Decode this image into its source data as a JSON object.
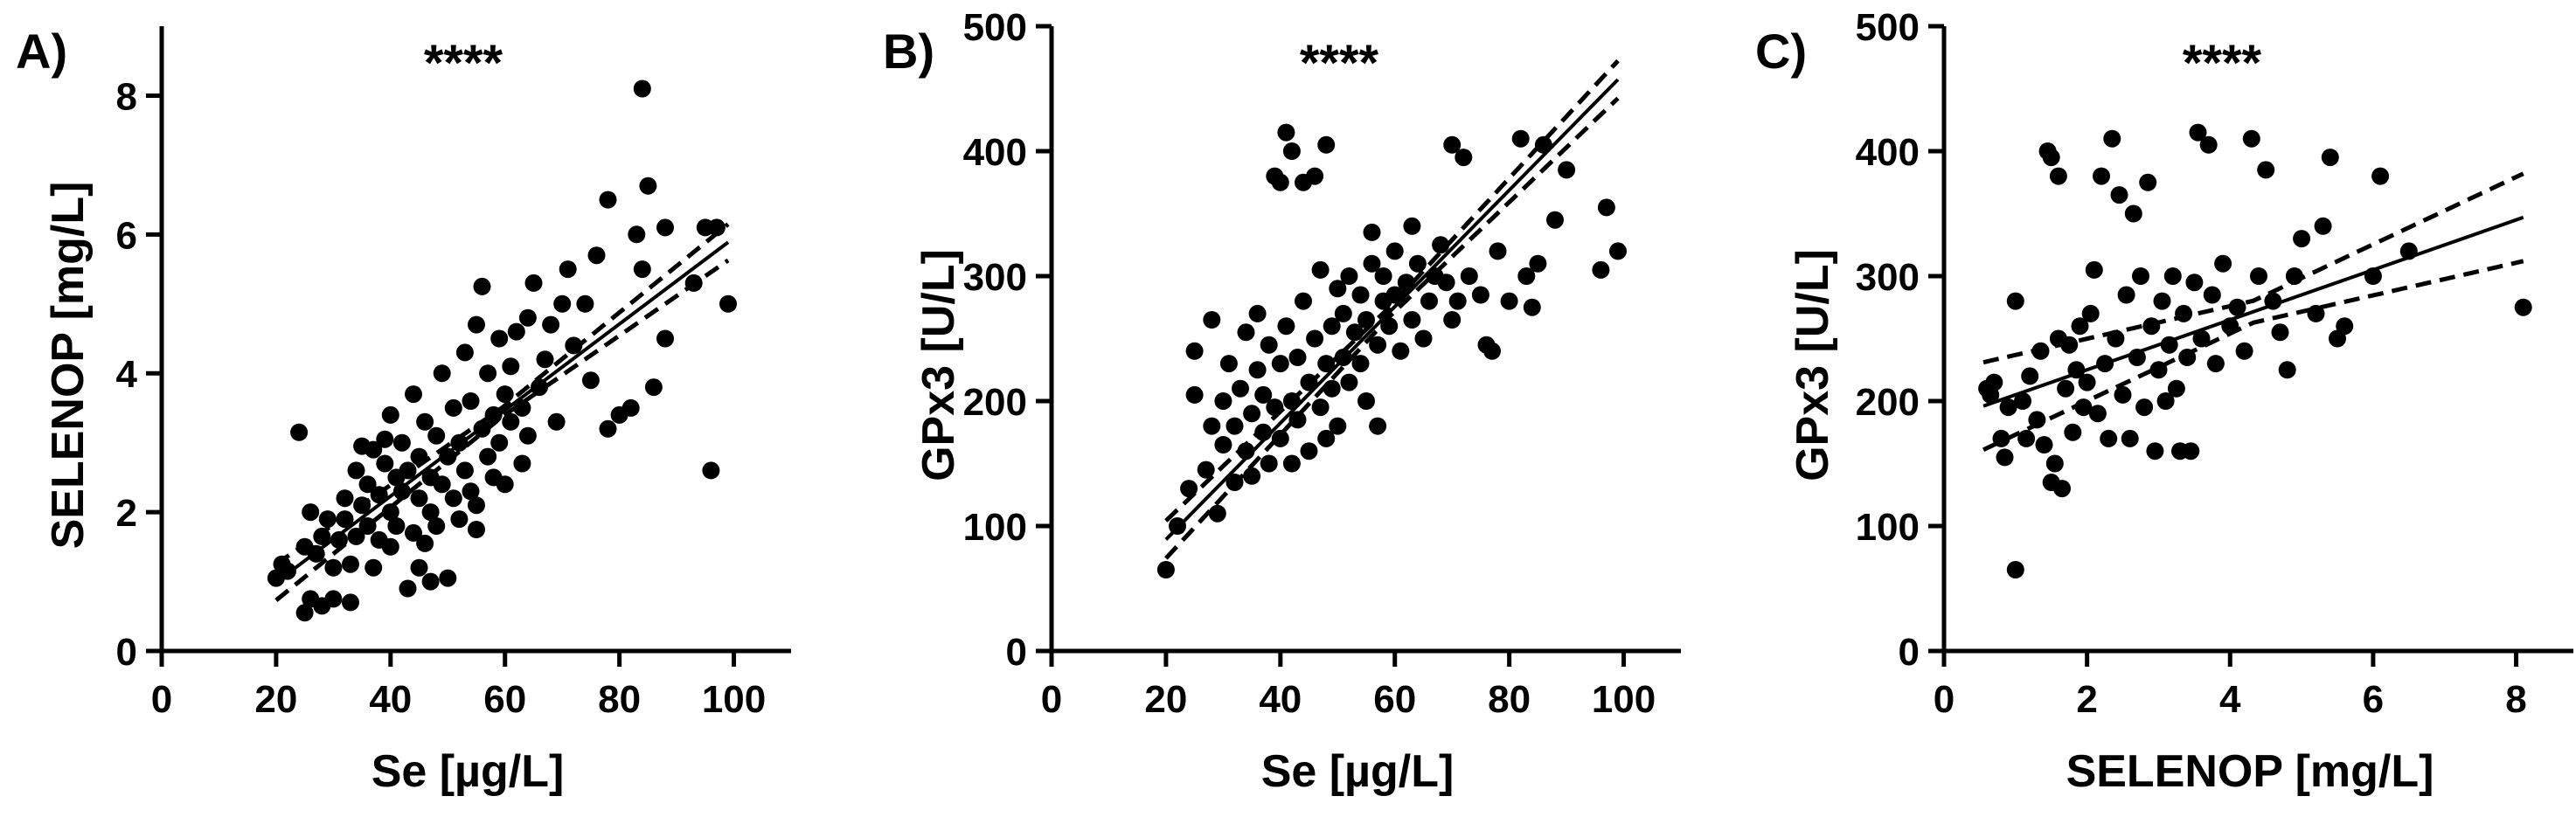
{
  "chart_data": [
    {
      "panel_label": "A)",
      "type": "scatter",
      "annotation": "****",
      "xlabel": "Se [µg/L]",
      "ylabel": "SELENOP [mg/L]",
      "xlim": [
        0,
        110
      ],
      "ylim": [
        0,
        9
      ],
      "xticks": [
        0,
        20,
        40,
        60,
        80,
        100
      ],
      "yticks": [
        0,
        2,
        4,
        6,
        8
      ],
      "regression": {
        "x_range": [
          20,
          99
        ],
        "slope": 0.062,
        "intercept": -0.25,
        "ci_halfwidth_end": 0.26
      },
      "points": [
        [
          20,
          1.05
        ],
        [
          21,
          1.25
        ],
        [
          22,
          1.15
        ],
        [
          24,
          3.15
        ],
        [
          25,
          1.5
        ],
        [
          25,
          0.55
        ],
        [
          26,
          0.75
        ],
        [
          26,
          2.0
        ],
        [
          27,
          1.4
        ],
        [
          28,
          0.65
        ],
        [
          28,
          1.65
        ],
        [
          29,
          1.9
        ],
        [
          30,
          1.2
        ],
        [
          30,
          0.75
        ],
        [
          31,
          1.6
        ],
        [
          32,
          2.2
        ],
        [
          32,
          1.9
        ],
        [
          33,
          1.25
        ],
        [
          33,
          0.7
        ],
        [
          34,
          2.6
        ],
        [
          34,
          1.65
        ],
        [
          35,
          2.1
        ],
        [
          35,
          2.95
        ],
        [
          36,
          1.8
        ],
        [
          36,
          2.4
        ],
        [
          37,
          1.2
        ],
        [
          37,
          2.9
        ],
        [
          38,
          2.25
        ],
        [
          38,
          1.6
        ],
        [
          39,
          2.7
        ],
        [
          39,
          3.05
        ],
        [
          40,
          2.0
        ],
        [
          40,
          1.5
        ],
        [
          40,
          3.4
        ],
        [
          41,
          2.5
        ],
        [
          41,
          1.8
        ],
        [
          42,
          2.3
        ],
        [
          42,
          3.0
        ],
        [
          43,
          0.9
        ],
        [
          43,
          2.6
        ],
        [
          44,
          1.7
        ],
        [
          44,
          3.7
        ],
        [
          45,
          2.2
        ],
        [
          45,
          1.2
        ],
        [
          45,
          2.8
        ],
        [
          46,
          1.55
        ],
        [
          46,
          3.3
        ],
        [
          47,
          2.0
        ],
        [
          47,
          1.0
        ],
        [
          47,
          2.5
        ],
        [
          48,
          1.8
        ],
        [
          48,
          3.1
        ],
        [
          49,
          2.4
        ],
        [
          49,
          4.0
        ],
        [
          50,
          1.05
        ],
        [
          50,
          2.8
        ],
        [
          51,
          3.5
        ],
        [
          51,
          2.2
        ],
        [
          52,
          3.0
        ],
        [
          52,
          1.9
        ],
        [
          53,
          4.3
        ],
        [
          53,
          2.6
        ],
        [
          54,
          2.3
        ],
        [
          54,
          3.6
        ],
        [
          55,
          1.75
        ],
        [
          55,
          2.1
        ],
        [
          55,
          4.7
        ],
        [
          56,
          3.2
        ],
        [
          56,
          5.25
        ],
        [
          57,
          2.8
        ],
        [
          57,
          4.0
        ],
        [
          58,
          3.4
        ],
        [
          58,
          2.5
        ],
        [
          59,
          4.5
        ],
        [
          59,
          3.0
        ],
        [
          60,
          3.7
        ],
        [
          60,
          2.4
        ],
        [
          61,
          4.1
        ],
        [
          61,
          3.3
        ],
        [
          62,
          4.6
        ],
        [
          63,
          3.5
        ],
        [
          63,
          2.7
        ],
        [
          64,
          4.8
        ],
        [
          64,
          3.1
        ],
        [
          65,
          5.3
        ],
        [
          66,
          3.8
        ],
        [
          67,
          4.2
        ],
        [
          68,
          4.7
        ],
        [
          69,
          3.3
        ],
        [
          70,
          5.0
        ],
        [
          71,
          5.5
        ],
        [
          72,
          4.4
        ],
        [
          74,
          5.0
        ],
        [
          75,
          3.9
        ],
        [
          76,
          5.7
        ],
        [
          78,
          6.5
        ],
        [
          78,
          3.2
        ],
        [
          80,
          3.4
        ],
        [
          82,
          3.5
        ],
        [
          83,
          6.0
        ],
        [
          84,
          8.1
        ],
        [
          84,
          5.5
        ],
        [
          85,
          6.7
        ],
        [
          86,
          3.8
        ],
        [
          88,
          4.5
        ],
        [
          88,
          6.1
        ],
        [
          93,
          5.3
        ],
        [
          95,
          6.1
        ],
        [
          96,
          2.6
        ],
        [
          97,
          6.1
        ],
        [
          99,
          5.0
        ]
      ]
    },
    {
      "panel_label": "B)",
      "type": "scatter",
      "annotation": "****",
      "xlabel": "Se [µg/L]",
      "ylabel": "GPx3 [U/L]",
      "xlim": [
        0,
        110
      ],
      "ylim": [
        0,
        500
      ],
      "xticks": [
        0,
        20,
        40,
        60,
        80,
        100
      ],
      "yticks": [
        0,
        100,
        200,
        300,
        400,
        500
      ],
      "regression": {
        "x_range": [
          20,
          99
        ],
        "slope": 4.66,
        "intercept": -4,
        "ci_halfwidth_end": 15
      },
      "points": [
        [
          20,
          65
        ],
        [
          22,
          100
        ],
        [
          24,
          130
        ],
        [
          25,
          205
        ],
        [
          25,
          240
        ],
        [
          27,
          145
        ],
        [
          28,
          180
        ],
        [
          28,
          265
        ],
        [
          29,
          110
        ],
        [
          30,
          200
        ],
        [
          30,
          165
        ],
        [
          31,
          230
        ],
        [
          32,
          135
        ],
        [
          32,
          180
        ],
        [
          33,
          210
        ],
        [
          34,
          160
        ],
        [
          34,
          255
        ],
        [
          35,
          190
        ],
        [
          35,
          140
        ],
        [
          36,
          225
        ],
        [
          36,
          270
        ],
        [
          37,
          175
        ],
        [
          37,
          205
        ],
        [
          38,
          245
        ],
        [
          38,
          150
        ],
        [
          39,
          195
        ],
        [
          39,
          380
        ],
        [
          40,
          230
        ],
        [
          40,
          170
        ],
        [
          40,
          375
        ],
        [
          41,
          415
        ],
        [
          41,
          260
        ],
        [
          42,
          200
        ],
        [
          42,
          150
        ],
        [
          42,
          400
        ],
        [
          43,
          235
        ],
        [
          43,
          185
        ],
        [
          44,
          280
        ],
        [
          44,
          375
        ],
        [
          45,
          215
        ],
        [
          45,
          160
        ],
        [
          46,
          250
        ],
        [
          46,
          380
        ],
        [
          47,
          195
        ],
        [
          47,
          305
        ],
        [
          48,
          230
        ],
        [
          48,
          170
        ],
        [
          48,
          405
        ],
        [
          49,
          260
        ],
        [
          49,
          210
        ],
        [
          50,
          290
        ],
        [
          50,
          180
        ],
        [
          51,
          235
        ],
        [
          51,
          270
        ],
        [
          52,
          215
        ],
        [
          52,
          300
        ],
        [
          53,
          255
        ],
        [
          54,
          230
        ],
        [
          54,
          285
        ],
        [
          55,
          200
        ],
        [
          55,
          265
        ],
        [
          56,
          310
        ],
        [
          56,
          335
        ],
        [
          57,
          245
        ],
        [
          57,
          180
        ],
        [
          58,
          280
        ],
        [
          58,
          300
        ],
        [
          59,
          260
        ],
        [
          60,
          285
        ],
        [
          60,
          320
        ],
        [
          61,
          240
        ],
        [
          62,
          295
        ],
        [
          63,
          265
        ],
        [
          63,
          340
        ],
        [
          64,
          310
        ],
        [
          65,
          250
        ],
        [
          66,
          280
        ],
        [
          67,
          300
        ],
        [
          68,
          325
        ],
        [
          69,
          295
        ],
        [
          70,
          405
        ],
        [
          70,
          265
        ],
        [
          71,
          280
        ],
        [
          72,
          395
        ],
        [
          73,
          300
        ],
        [
          75,
          285
        ],
        [
          76,
          245
        ],
        [
          77,
          240
        ],
        [
          78,
          320
        ],
        [
          80,
          280
        ],
        [
          82,
          410
        ],
        [
          83,
          300
        ],
        [
          84,
          275
        ],
        [
          85,
          310
        ],
        [
          86,
          405
        ],
        [
          88,
          345
        ],
        [
          90,
          385
        ],
        [
          96,
          305
        ],
        [
          97,
          355
        ],
        [
          99,
          320
        ]
      ]
    },
    {
      "panel_label": "C)",
      "type": "scatter",
      "annotation": "****",
      "xlabel": "SELENOP [mg/L]",
      "ylabel": "GPx3 [U/L]",
      "xlim": [
        0,
        8.8
      ],
      "ylim": [
        0,
        500
      ],
      "xticks": [
        0,
        2,
        4,
        6,
        8
      ],
      "yticks": [
        0,
        100,
        200,
        300,
        400,
        500
      ],
      "regression": {
        "x_range": [
          0.55,
          8.1
        ],
        "slope": 20.0,
        "intercept": 185,
        "ci_halfwidth_end": 35
      },
      "points": [
        [
          0.6,
          210
        ],
        [
          0.65,
          205
        ],
        [
          0.7,
          215
        ],
        [
          0.8,
          170
        ],
        [
          0.85,
          155
        ],
        [
          0.9,
          195
        ],
        [
          1.0,
          65
        ],
        [
          1.0,
          280
        ],
        [
          1.1,
          200
        ],
        [
          1.15,
          170
        ],
        [
          1.2,
          220
        ],
        [
          1.3,
          185
        ],
        [
          1.35,
          240
        ],
        [
          1.4,
          165
        ],
        [
          1.45,
          400
        ],
        [
          1.5,
          135
        ],
        [
          1.5,
          395
        ],
        [
          1.55,
          150
        ],
        [
          1.6,
          250
        ],
        [
          1.6,
          380
        ],
        [
          1.65,
          130
        ],
        [
          1.7,
          210
        ],
        [
          1.75,
          245
        ],
        [
          1.8,
          175
        ],
        [
          1.85,
          225
        ],
        [
          1.9,
          260
        ],
        [
          1.95,
          195
        ],
        [
          2.0,
          215
        ],
        [
          2.05,
          270
        ],
        [
          2.1,
          305
        ],
        [
          2.15,
          190
        ],
        [
          2.2,
          380
        ],
        [
          2.25,
          230
        ],
        [
          2.3,
          170
        ],
        [
          2.35,
          410
        ],
        [
          2.4,
          250
        ],
        [
          2.45,
          365
        ],
        [
          2.5,
          205
        ],
        [
          2.55,
          285
        ],
        [
          2.6,
          170
        ],
        [
          2.65,
          350
        ],
        [
          2.7,
          235
        ],
        [
          2.75,
          300
        ],
        [
          2.8,
          195
        ],
        [
          2.85,
          375
        ],
        [
          2.9,
          260
        ],
        [
          2.95,
          160
        ],
        [
          3.0,
          225
        ],
        [
          3.05,
          280
        ],
        [
          3.1,
          200
        ],
        [
          3.15,
          245
        ],
        [
          3.2,
          300
        ],
        [
          3.25,
          210
        ],
        [
          3.3,
          160
        ],
        [
          3.35,
          270
        ],
        [
          3.4,
          235
        ],
        [
          3.45,
          160
        ],
        [
          3.5,
          295
        ],
        [
          3.55,
          415
        ],
        [
          3.6,
          250
        ],
        [
          3.7,
          405
        ],
        [
          3.75,
          285
        ],
        [
          3.8,
          230
        ],
        [
          3.9,
          310
        ],
        [
          4.0,
          260
        ],
        [
          4.1,
          275
        ],
        [
          4.2,
          240
        ],
        [
          4.3,
          410
        ],
        [
          4.4,
          300
        ],
        [
          4.5,
          385
        ],
        [
          4.6,
          280
        ],
        [
          4.7,
          255
        ],
        [
          4.8,
          225
        ],
        [
          4.9,
          300
        ],
        [
          5.0,
          330
        ],
        [
          5.2,
          270
        ],
        [
          5.3,
          340
        ],
        [
          5.4,
          395
        ],
        [
          5.5,
          250
        ],
        [
          5.6,
          260
        ],
        [
          6.0,
          300
        ],
        [
          6.1,
          380
        ],
        [
          6.5,
          320
        ],
        [
          8.1,
          275
        ]
      ]
    }
  ]
}
